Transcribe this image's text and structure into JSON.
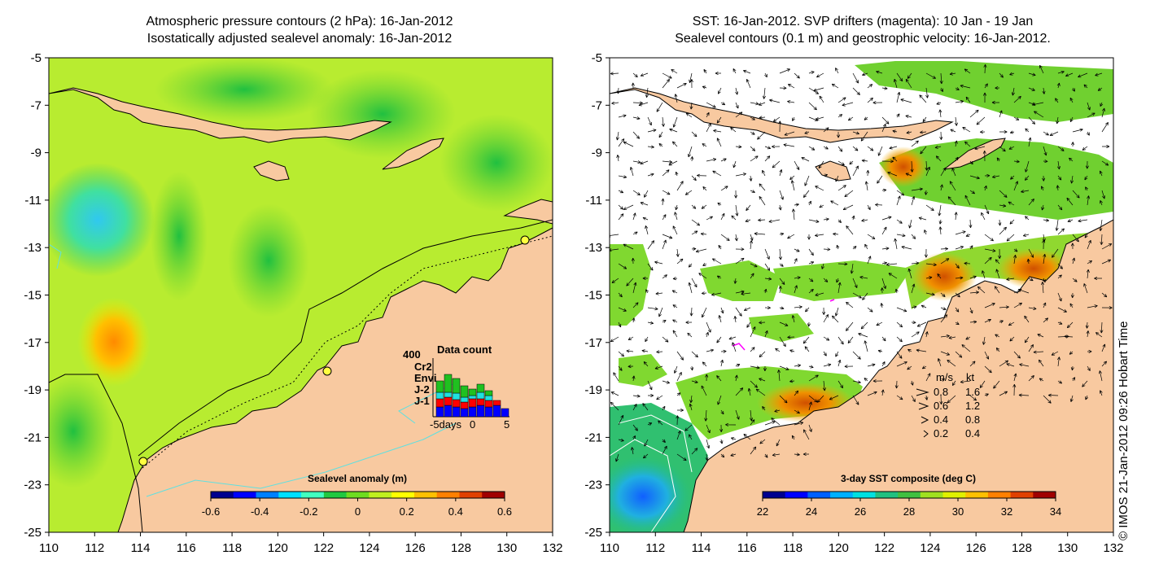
{
  "left_panel": {
    "title_line1": "Atmospheric pressure contours (2 hPa): 16-Jan-2012",
    "title_line2": "Isostatically adjusted sealevel anomaly: 16-Jan-2012",
    "x_ticks": [
      "110",
      "112",
      "114",
      "116",
      "118",
      "120",
      "122",
      "124",
      "126",
      "128",
      "130",
      "132"
    ],
    "y_ticks": [
      "-5",
      "-7",
      "-9",
      "-11",
      "-13",
      "-15",
      "-17",
      "-19",
      "-21",
      "-23",
      "-25"
    ],
    "colorbar": {
      "title": "Sealevel anomaly (m)",
      "ticks": [
        "-0.6",
        "-0.4",
        "-0.2",
        "0",
        "0.2",
        "0.4",
        "0.6"
      ],
      "colors": [
        "#00008f",
        "#0000ff",
        "#0080ff",
        "#00e0ff",
        "#40ffbf",
        "#20c840",
        "#6edc20",
        "#c0f020",
        "#ffff00",
        "#ffc000",
        "#ff8000",
        "#e04000",
        "#a00000"
      ]
    },
    "data_count_inset": {
      "title": "Data count",
      "ymax_label": "400",
      "xlabel": "-5days",
      "xticks": [
        "0",
        "5"
      ],
      "legend": [
        {
          "label": "Cr2",
          "color": "#20c020"
        },
        {
          "label": "Envi",
          "color": "#20e0e0"
        },
        {
          "label": "J-2",
          "color": "#ff0000"
        },
        {
          "label": "J-1",
          "color": "#0000ff"
        }
      ]
    },
    "land_color": "#f8c9a0",
    "ocean_color": "#b8ec30"
  },
  "right_panel": {
    "title_line1": "SST: 16-Jan-2012. SVP drifters (magenta): 10 Jan - 19 Jan",
    "title_line2": "Sealevel contours (0.1 m) and geostrophic velocity: 16-Jan-2012.",
    "x_ticks": [
      "110",
      "112",
      "114",
      "116",
      "118",
      "120",
      "122",
      "124",
      "126",
      "128",
      "130",
      "132"
    ],
    "y_ticks": [
      "-5",
      "-7",
      "-9",
      "-11",
      "-13",
      "-15",
      "-17",
      "-19",
      "-21",
      "-23",
      "-25"
    ],
    "velocity_legend": {
      "header_ms": "m/s",
      "header_kt": "kt",
      "rows": [
        {
          "ms": "0.8",
          "kt": "1.6"
        },
        {
          "ms": "0.6",
          "kt": "1.2"
        },
        {
          "ms": "0.4",
          "kt": "0.8"
        },
        {
          "ms": "0.2",
          "kt": "0.4"
        }
      ]
    },
    "colorbar": {
      "title": "3-day SST composite (deg C)",
      "ticks": [
        "22",
        "24",
        "26",
        "28",
        "30",
        "32",
        "34"
      ],
      "colors": [
        "#00008f",
        "#0000ff",
        "#0060ff",
        "#00b0ff",
        "#00e0e0",
        "#20c080",
        "#40c040",
        "#a0e020",
        "#e0f000",
        "#ffc000",
        "#ff8000",
        "#e04000",
        "#a00000"
      ]
    },
    "land_color": "#f8c9a0"
  },
  "credit": "© IMOS 21-Jan-2012 09:26 Hobart Time"
}
